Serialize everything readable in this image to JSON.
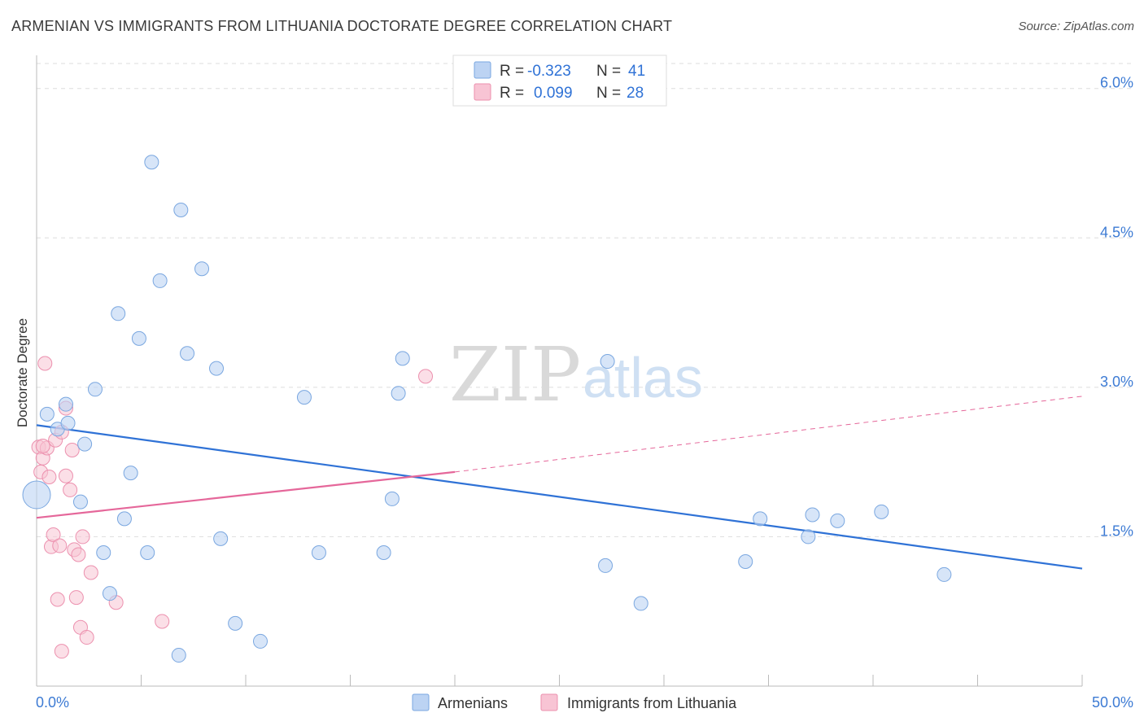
{
  "header": {
    "title": "ARMENIAN VS IMMIGRANTS FROM LITHUANIA DOCTORATE DEGREE CORRELATION CHART",
    "source": "Source: ZipAtlas.com"
  },
  "watermark": {
    "zip": "ZIP",
    "atlas": "atlas"
  },
  "colors": {
    "blue_fill": "#bcd3f3",
    "blue_stroke": "#7aa7e0",
    "blue_line": "#2f72d6",
    "pink_fill": "#f8c4d4",
    "pink_stroke": "#ec90ae",
    "pink_line": "#e5679a",
    "axis_text": "#3d7bd4",
    "grid": "#dddddd"
  },
  "legend": {
    "r_label": "R =",
    "n_label": "N =",
    "rows": [
      {
        "r": "-0.323",
        "n": "41"
      },
      {
        "r": "0.099",
        "n": "28"
      }
    ]
  },
  "chart_data": {
    "type": "scatter",
    "title": "ARMENIAN VS IMMIGRANTS FROM LITHUANIA DOCTORATE DEGREE CORRELATION CHART",
    "ylabel": "Doctorate Degree",
    "xlabel": "",
    "xlim": [
      0,
      50
    ],
    "ylim": [
      0,
      6.3
    ],
    "x_tick_labels": [
      "0.0%",
      "50.0%"
    ],
    "y_ticks": [
      1.5,
      3.0,
      4.5,
      6.0
    ],
    "y_tick_labels": [
      "1.5%",
      "3.0%",
      "4.5%",
      "6.0%"
    ],
    "grid": true,
    "legend_position": "top-center",
    "series": [
      {
        "name": "Armenians",
        "r": -0.323,
        "n": 41,
        "trend": {
          "x": [
            0,
            50
          ],
          "y": [
            2.62,
            1.18
          ]
        },
        "points": [
          {
            "x": 0.0,
            "y": 1.92,
            "big": true
          },
          {
            "x": 0.5,
            "y": 2.73
          },
          {
            "x": 1.0,
            "y": 2.58
          },
          {
            "x": 1.4,
            "y": 2.83
          },
          {
            "x": 1.5,
            "y": 2.64
          },
          {
            "x": 2.1,
            "y": 1.85
          },
          {
            "x": 2.3,
            "y": 2.43
          },
          {
            "x": 2.8,
            "y": 2.98
          },
          {
            "x": 3.2,
            "y": 1.34
          },
          {
            "x": 3.5,
            "y": 0.93
          },
          {
            "x": 3.9,
            "y": 3.74
          },
          {
            "x": 4.2,
            "y": 1.68
          },
          {
            "x": 4.5,
            "y": 2.14
          },
          {
            "x": 4.9,
            "y": 3.49
          },
          {
            "x": 5.3,
            "y": 1.34
          },
          {
            "x": 5.5,
            "y": 5.26
          },
          {
            "x": 5.9,
            "y": 4.07
          },
          {
            "x": 6.8,
            "y": 0.31
          },
          {
            "x": 6.9,
            "y": 4.78
          },
          {
            "x": 7.2,
            "y": 3.34
          },
          {
            "x": 7.9,
            "y": 4.19
          },
          {
            "x": 8.6,
            "y": 3.19
          },
          {
            "x": 8.8,
            "y": 1.48
          },
          {
            "x": 9.5,
            "y": 0.63
          },
          {
            "x": 10.7,
            "y": 0.45
          },
          {
            "x": 12.8,
            "y": 2.9
          },
          {
            "x": 13.5,
            "y": 1.34
          },
          {
            "x": 16.6,
            "y": 1.34
          },
          {
            "x": 17.0,
            "y": 1.88
          },
          {
            "x": 17.3,
            "y": 2.94
          },
          {
            "x": 17.5,
            "y": 3.29
          },
          {
            "x": 27.2,
            "y": 1.21
          },
          {
            "x": 27.3,
            "y": 3.26
          },
          {
            "x": 28.9,
            "y": 0.83
          },
          {
            "x": 33.9,
            "y": 1.25
          },
          {
            "x": 34.6,
            "y": 1.68
          },
          {
            "x": 36.9,
            "y": 1.5
          },
          {
            "x": 37.1,
            "y": 1.72
          },
          {
            "x": 38.3,
            "y": 1.66
          },
          {
            "x": 40.4,
            "y": 1.75
          },
          {
            "x": 43.4,
            "y": 1.12
          }
        ]
      },
      {
        "name": "Immigrants from Lithuania",
        "r": 0.099,
        "n": 28,
        "trend": {
          "x": [
            0,
            20
          ],
          "y": [
            1.69,
            2.15
          ],
          "extend_to": [
            50,
            2.91
          ]
        },
        "points": [
          {
            "x": 0.1,
            "y": 2.4
          },
          {
            "x": 0.2,
            "y": 2.15
          },
          {
            "x": 0.3,
            "y": 2.29
          },
          {
            "x": 0.4,
            "y": 3.24
          },
          {
            "x": 0.5,
            "y": 2.39
          },
          {
            "x": 0.6,
            "y": 2.1
          },
          {
            "x": 0.7,
            "y": 1.4
          },
          {
            "x": 0.8,
            "y": 1.52
          },
          {
            "x": 0.9,
            "y": 2.47
          },
          {
            "x": 1.0,
            "y": 0.87
          },
          {
            "x": 1.1,
            "y": 1.41
          },
          {
            "x": 1.2,
            "y": 2.55
          },
          {
            "x": 1.2,
            "y": 0.35
          },
          {
            "x": 1.4,
            "y": 2.11
          },
          {
            "x": 1.4,
            "y": 2.79
          },
          {
            "x": 1.6,
            "y": 1.97
          },
          {
            "x": 1.7,
            "y": 2.37
          },
          {
            "x": 1.8,
            "y": 1.37
          },
          {
            "x": 1.9,
            "y": 0.89
          },
          {
            "x": 2.0,
            "y": 1.32
          },
          {
            "x": 2.1,
            "y": 0.59
          },
          {
            "x": 2.2,
            "y": 1.5
          },
          {
            "x": 2.4,
            "y": 0.49
          },
          {
            "x": 2.6,
            "y": 1.14
          },
          {
            "x": 3.8,
            "y": 0.84
          },
          {
            "x": 6.0,
            "y": 0.65
          },
          {
            "x": 18.6,
            "y": 3.11
          },
          {
            "x": 0.3,
            "y": 2.41
          }
        ]
      }
    ]
  }
}
